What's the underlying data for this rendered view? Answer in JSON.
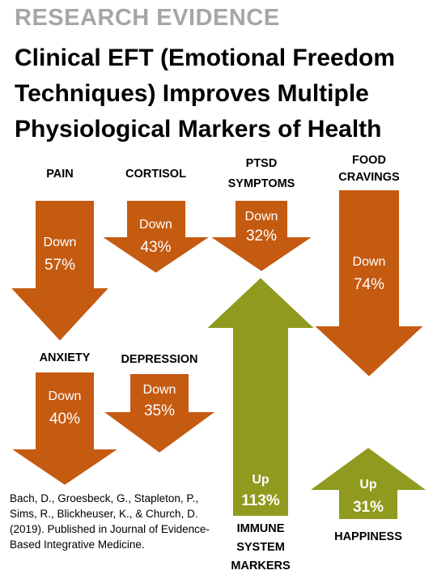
{
  "header": {
    "kicker": "RESEARCH EVIDENCE",
    "title_lines": [
      "Clinical EFT (Emotional Freedom",
      "Techniques) Improves Multiple",
      "Physiological Markers of Health"
    ]
  },
  "colors": {
    "down": "#c55a11",
    "up": "#8f9a1e",
    "stroke": "#ffffff"
  },
  "markers": [
    {
      "id": "pain",
      "label_lines": [
        "PAIN"
      ],
      "direction": "Down",
      "change": "57%"
    },
    {
      "id": "cortisol",
      "label_lines": [
        "CORTISOL"
      ],
      "direction": "Down",
      "change": "43%"
    },
    {
      "id": "ptsd",
      "label_lines": [
        "PTSD",
        "SYMPTOMS"
      ],
      "direction": "Down",
      "change": "32%"
    },
    {
      "id": "food",
      "label_lines": [
        "FOOD",
        "CRAVINGS"
      ],
      "direction": "Down",
      "change": "74%"
    },
    {
      "id": "anxiety",
      "label_lines": [
        "ANXIETY"
      ],
      "direction": "Down",
      "change": "40%"
    },
    {
      "id": "depression",
      "label_lines": [
        "DEPRESSION"
      ],
      "direction": "Down",
      "change": "35%"
    },
    {
      "id": "immune",
      "label_lines": [
        "IMMUNE",
        "SYSTEM",
        "MARKERS"
      ],
      "direction": "Up",
      "change": "113%"
    },
    {
      "id": "happiness",
      "label_lines": [
        "HAPPINESS"
      ],
      "direction": "Up",
      "change": "31%"
    }
  ],
  "citation": "Bach, D., Groesbeck, G., Stapleton, P., Sims, R., Blickheuser, K., & Church, D. (2019). Published in Journal of Evidence-Based Integrative Medicine."
}
